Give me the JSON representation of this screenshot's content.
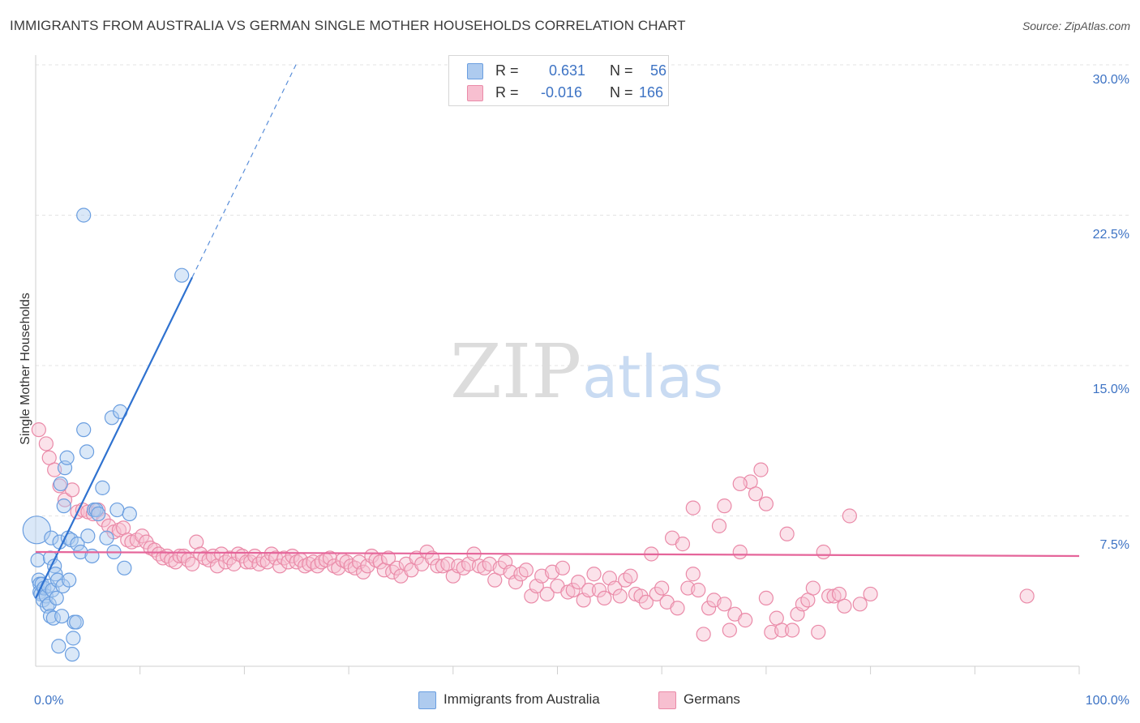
{
  "title": "IMMIGRANTS FROM AUSTRALIA VS GERMAN SINGLE MOTHER HOUSEHOLDS CORRELATION CHART",
  "source": "Source: ZipAtlas.com",
  "watermark": {
    "zip": "ZIP",
    "atlas": "atlas"
  },
  "legend": {
    "rows": [
      {
        "r_label": "R =",
        "r_value": "0.631",
        "n_label": "N =",
        "n_value": "56"
      },
      {
        "r_label": "R =",
        "r_value": "-0.016",
        "n_label": "N =",
        "n_value": "166"
      }
    ]
  },
  "colors": {
    "blue_fill": "#aecbef",
    "blue_stroke": "#6a9ee0",
    "blue_line": "#2f72d0",
    "pink_fill": "#f7bfd0",
    "pink_stroke": "#ea8aa8",
    "pink_line": "#e5659a",
    "axis_text": "#3d73c4",
    "grid": "#e3e3e3"
  },
  "chart_data": {
    "type": "scatter",
    "ylabel": "Single Mother Households",
    "x_tick_labels": [
      "0.0%",
      "100.0%"
    ],
    "y_tick_labels": [
      "7.5%",
      "15.0%",
      "22.5%",
      "30.0%"
    ],
    "xlim": [
      0,
      100
    ],
    "ylim": [
      0,
      30
    ],
    "grid": true,
    "legend_position": "bottom",
    "series": [
      {
        "name": "Immigrants from Australia",
        "color": "blue",
        "r": 0.631,
        "n": 56,
        "trend": {
          "x0": 0,
          "y0": 3.4,
          "x1": 15,
          "y1": 19.4,
          "dashed_to_x": 25
        },
        "points": [
          [
            0.1,
            6.8
          ],
          [
            0.2,
            5.3
          ],
          [
            0.3,
            4.3
          ],
          [
            0.4,
            4.1
          ],
          [
            0.4,
            3.7
          ],
          [
            0.5,
            3.6
          ],
          [
            0.6,
            4.1
          ],
          [
            0.7,
            3.3
          ],
          [
            0.8,
            3.9
          ],
          [
            1.0,
            3.5
          ],
          [
            1.1,
            3.0
          ],
          [
            1.2,
            4.0
          ],
          [
            1.3,
            3.1
          ],
          [
            1.4,
            2.5
          ],
          [
            1.4,
            5.4
          ],
          [
            1.5,
            6.4
          ],
          [
            1.6,
            3.8
          ],
          [
            1.7,
            2.4
          ],
          [
            1.8,
            5.0
          ],
          [
            1.9,
            4.6
          ],
          [
            2.0,
            3.4
          ],
          [
            2.1,
            4.3
          ],
          [
            2.2,
            1.0
          ],
          [
            2.3,
            6.2
          ],
          [
            2.4,
            9.1
          ],
          [
            2.5,
            2.5
          ],
          [
            2.6,
            4.0
          ],
          [
            2.7,
            8.0
          ],
          [
            2.8,
            9.9
          ],
          [
            3.0,
            10.4
          ],
          [
            3.1,
            6.4
          ],
          [
            3.2,
            4.3
          ],
          [
            3.4,
            6.3
          ],
          [
            3.5,
            0.6
          ],
          [
            3.6,
            1.4
          ],
          [
            3.7,
            2.2
          ],
          [
            3.9,
            2.2
          ],
          [
            4.0,
            6.1
          ],
          [
            4.3,
            5.7
          ],
          [
            4.6,
            11.8
          ],
          [
            4.9,
            10.7
          ],
          [
            5.0,
            6.5
          ],
          [
            5.4,
            5.5
          ],
          [
            5.6,
            7.8
          ],
          [
            5.8,
            7.8
          ],
          [
            6.0,
            7.6
          ],
          [
            6.4,
            8.9
          ],
          [
            6.8,
            6.4
          ],
          [
            7.3,
            12.4
          ],
          [
            7.5,
            5.7
          ],
          [
            7.8,
            7.8
          ],
          [
            8.1,
            12.7
          ],
          [
            8.5,
            4.9
          ],
          [
            9.0,
            7.6
          ],
          [
            4.6,
            22.5
          ],
          [
            14.0,
            19.5
          ]
        ]
      },
      {
        "name": "Germans",
        "color": "pink",
        "r": -0.016,
        "n": 166,
        "trend": {
          "x0": 0,
          "y0": 5.7,
          "x1": 100,
          "y1": 5.5
        },
        "points": [
          [
            0.3,
            11.8
          ],
          [
            1.0,
            11.1
          ],
          [
            1.3,
            10.4
          ],
          [
            1.8,
            9.8
          ],
          [
            2.3,
            9.0
          ],
          [
            2.8,
            8.3
          ],
          [
            3.5,
            8.8
          ],
          [
            4.0,
            7.7
          ],
          [
            4.5,
            7.8
          ],
          [
            5.0,
            7.7
          ],
          [
            5.5,
            7.6
          ],
          [
            6.0,
            7.8
          ],
          [
            6.5,
            7.3
          ],
          [
            7.0,
            7.0
          ],
          [
            7.5,
            6.7
          ],
          [
            8.0,
            6.8
          ],
          [
            8.4,
            6.9
          ],
          [
            8.8,
            6.3
          ],
          [
            9.2,
            6.2
          ],
          [
            9.7,
            6.3
          ],
          [
            10.2,
            6.5
          ],
          [
            10.6,
            6.2
          ],
          [
            11.0,
            5.9
          ],
          [
            11.4,
            5.8
          ],
          [
            11.8,
            5.6
          ],
          [
            12.2,
            5.4
          ],
          [
            12.6,
            5.5
          ],
          [
            13.0,
            5.3
          ],
          [
            13.4,
            5.2
          ],
          [
            13.8,
            5.5
          ],
          [
            14.2,
            5.5
          ],
          [
            14.6,
            5.3
          ],
          [
            15.0,
            5.1
          ],
          [
            15.4,
            6.2
          ],
          [
            15.8,
            5.6
          ],
          [
            16.2,
            5.4
          ],
          [
            16.6,
            5.3
          ],
          [
            17.0,
            5.5
          ],
          [
            17.4,
            5.0
          ],
          [
            17.8,
            5.6
          ],
          [
            18.2,
            5.2
          ],
          [
            18.6,
            5.4
          ],
          [
            19.0,
            5.1
          ],
          [
            19.4,
            5.6
          ],
          [
            19.8,
            5.5
          ],
          [
            20.2,
            5.2
          ],
          [
            20.6,
            5.2
          ],
          [
            21.0,
            5.5
          ],
          [
            21.4,
            5.1
          ],
          [
            21.8,
            5.3
          ],
          [
            22.2,
            5.2
          ],
          [
            22.6,
            5.6
          ],
          [
            23.0,
            5.4
          ],
          [
            23.4,
            5.0
          ],
          [
            23.8,
            5.4
          ],
          [
            24.2,
            5.2
          ],
          [
            24.6,
            5.5
          ],
          [
            25.0,
            5.2
          ],
          [
            25.4,
            5.3
          ],
          [
            25.8,
            5.0
          ],
          [
            26.2,
            5.1
          ],
          [
            26.6,
            5.2
          ],
          [
            27.0,
            5.0
          ],
          [
            27.4,
            5.2
          ],
          [
            27.8,
            5.3
          ],
          [
            28.2,
            5.4
          ],
          [
            28.6,
            5.0
          ],
          [
            29.0,
            4.9
          ],
          [
            29.4,
            5.3
          ],
          [
            29.8,
            5.2
          ],
          [
            30.2,
            5.0
          ],
          [
            30.6,
            4.9
          ],
          [
            31.0,
            5.2
          ],
          [
            31.4,
            4.7
          ],
          [
            31.8,
            5.0
          ],
          [
            32.2,
            5.5
          ],
          [
            32.6,
            5.3
          ],
          [
            33.0,
            5.2
          ],
          [
            33.4,
            4.8
          ],
          [
            33.8,
            5.4
          ],
          [
            34.2,
            4.7
          ],
          [
            34.6,
            4.9
          ],
          [
            35.0,
            4.5
          ],
          [
            35.5,
            5.1
          ],
          [
            36.0,
            4.8
          ],
          [
            36.5,
            5.4
          ],
          [
            37.0,
            5.1
          ],
          [
            37.5,
            5.7
          ],
          [
            38.0,
            5.4
          ],
          [
            38.5,
            5.0
          ],
          [
            39.0,
            5.0
          ],
          [
            39.5,
            5.1
          ],
          [
            40.0,
            4.5
          ],
          [
            40.5,
            5.0
          ],
          [
            41.0,
            4.9
          ],
          [
            41.5,
            5.1
          ],
          [
            42.0,
            5.6
          ],
          [
            42.5,
            5.0
          ],
          [
            43.0,
            4.9
          ],
          [
            43.5,
            5.1
          ],
          [
            44.0,
            4.3
          ],
          [
            44.5,
            4.9
          ],
          [
            45.0,
            5.2
          ],
          [
            45.5,
            4.7
          ],
          [
            46.0,
            4.2
          ],
          [
            46.5,
            4.6
          ],
          [
            47.0,
            4.8
          ],
          [
            47.5,
            3.5
          ],
          [
            48.0,
            4.0
          ],
          [
            48.5,
            4.5
          ],
          [
            49.0,
            3.6
          ],
          [
            49.5,
            4.7
          ],
          [
            50.0,
            4.0
          ],
          [
            50.5,
            4.9
          ],
          [
            51.0,
            3.7
          ],
          [
            51.5,
            3.8
          ],
          [
            52.0,
            4.2
          ],
          [
            52.5,
            3.3
          ],
          [
            53.0,
            3.8
          ],
          [
            53.5,
            4.6
          ],
          [
            54.0,
            3.8
          ],
          [
            54.5,
            3.4
          ],
          [
            55.0,
            4.4
          ],
          [
            55.5,
            3.9
          ],
          [
            56.0,
            3.5
          ],
          [
            56.5,
            4.3
          ],
          [
            57.0,
            4.5
          ],
          [
            57.5,
            3.6
          ],
          [
            58.0,
            3.5
          ],
          [
            58.5,
            3.2
          ],
          [
            59.0,
            5.6
          ],
          [
            59.5,
            3.6
          ],
          [
            60.0,
            3.9
          ],
          [
            60.5,
            3.2
          ],
          [
            61.0,
            6.4
          ],
          [
            61.5,
            2.9
          ],
          [
            62.0,
            6.1
          ],
          [
            62.5,
            3.9
          ],
          [
            63.0,
            4.6
          ],
          [
            63.5,
            3.8
          ],
          [
            64.0,
            1.6
          ],
          [
            64.5,
            2.9
          ],
          [
            65.0,
            3.3
          ],
          [
            65.5,
            7.0
          ],
          [
            66.0,
            3.1
          ],
          [
            66.5,
            1.8
          ],
          [
            67.0,
            2.6
          ],
          [
            67.5,
            5.7
          ],
          [
            68.0,
            2.3
          ],
          [
            68.5,
            9.2
          ],
          [
            69.0,
            8.6
          ],
          [
            69.5,
            9.8
          ],
          [
            70.0,
            3.4
          ],
          [
            70.5,
            1.7
          ],
          [
            71.0,
            2.4
          ],
          [
            71.5,
            1.8
          ],
          [
            72.0,
            6.6
          ],
          [
            72.5,
            1.8
          ],
          [
            73.0,
            2.6
          ],
          [
            73.5,
            3.1
          ],
          [
            74.0,
            3.3
          ],
          [
            74.5,
            3.9
          ],
          [
            75.0,
            1.7
          ],
          [
            75.5,
            5.7
          ],
          [
            76.0,
            3.5
          ],
          [
            76.5,
            3.5
          ],
          [
            77.0,
            3.6
          ],
          [
            77.5,
            3.0
          ],
          [
            63.0,
            7.9
          ],
          [
            66.0,
            8.0
          ],
          [
            67.5,
            9.1
          ],
          [
            70.0,
            8.1
          ],
          [
            78.0,
            7.5
          ],
          [
            79.0,
            3.1
          ],
          [
            80.0,
            3.6
          ],
          [
            95.0,
            3.5
          ]
        ]
      }
    ]
  }
}
